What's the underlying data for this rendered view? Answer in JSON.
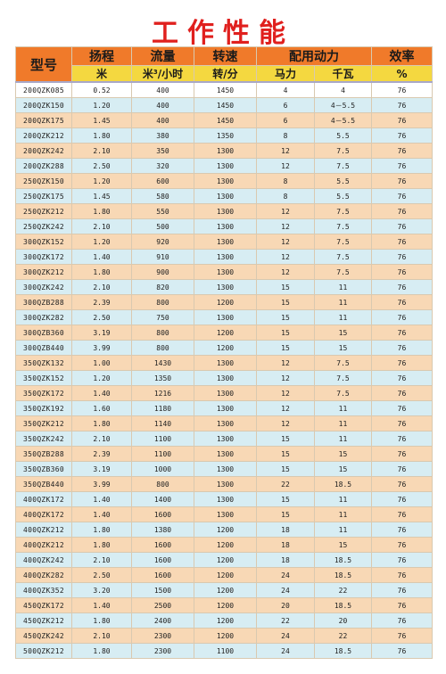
{
  "title": "工作性能",
  "headers": {
    "model": "型号",
    "head": "扬程",
    "flow": "流量",
    "speed": "转速",
    "power": "配用动力",
    "efficiency": "效率",
    "head_unit": "米",
    "flow_unit_base": "米",
    "flow_unit_sup": "3",
    "flow_unit_rest": "/小时",
    "speed_unit": "转/分",
    "hp_unit": "马力",
    "kw_unit": "千瓦",
    "efficiency_unit": "%"
  },
  "rows": [
    [
      "200QZK085",
      "0.52",
      "400",
      "1450",
      "4",
      "4",
      "76"
    ],
    [
      "200QZK150",
      "1.20",
      "400",
      "1450",
      "6",
      "4－5.5",
      "76"
    ],
    [
      "200QZK175",
      "1.45",
      "400",
      "1450",
      "6",
      "4－5.5",
      "76"
    ],
    [
      "200QZK212",
      "1.80",
      "380",
      "1350",
      "8",
      "5.5",
      "76"
    ],
    [
      "200QZK242",
      "2.10",
      "350",
      "1300",
      "12",
      "7.5",
      "76"
    ],
    [
      "200QZK288",
      "2.50",
      "320",
      "1300",
      "12",
      "7.5",
      "76"
    ],
    [
      "250QZK150",
      "1.20",
      "600",
      "1300",
      "8",
      "5.5",
      "76"
    ],
    [
      "250QZK175",
      "1.45",
      "580",
      "1300",
      "8",
      "5.5",
      "76"
    ],
    [
      "250QZK212",
      "1.80",
      "550",
      "1300",
      "12",
      "7.5",
      "76"
    ],
    [
      "250QZK242",
      "2.10",
      "500",
      "1300",
      "12",
      "7.5",
      "76"
    ],
    [
      "300QZK152",
      "1.20",
      "920",
      "1300",
      "12",
      "7.5",
      "76"
    ],
    [
      "300QZK172",
      "1.40",
      "910",
      "1300",
      "12",
      "7.5",
      "76"
    ],
    [
      "300QZK212",
      "1.80",
      "900",
      "1300",
      "12",
      "7.5",
      "76"
    ],
    [
      "300QZK242",
      "2.10",
      "820",
      "1300",
      "15",
      "11",
      "76"
    ],
    [
      "300QZB288",
      "2.39",
      "800",
      "1200",
      "15",
      "11",
      "76"
    ],
    [
      "300QZK282",
      "2.50",
      "750",
      "1300",
      "15",
      "11",
      "76"
    ],
    [
      "300QZB360",
      "3.19",
      "800",
      "1200",
      "15",
      "15",
      "76"
    ],
    [
      "300QZB440",
      "3.99",
      "800",
      "1200",
      "15",
      "15",
      "76"
    ],
    [
      "350QZK132",
      "1.00",
      "1430",
      "1300",
      "12",
      "7.5",
      "76"
    ],
    [
      "350QZK152",
      "1.20",
      "1350",
      "1300",
      "12",
      "7.5",
      "76"
    ],
    [
      "350QZK172",
      "1.40",
      "1216",
      "1300",
      "12",
      "7.5",
      "76"
    ],
    [
      "350QZK192",
      "1.60",
      "1180",
      "1300",
      "12",
      "11",
      "76"
    ],
    [
      "350QZK212",
      "1.80",
      "1140",
      "1300",
      "12",
      "11",
      "76"
    ],
    [
      "350QZK242",
      "2.10",
      "1100",
      "1300",
      "15",
      "11",
      "76"
    ],
    [
      "350QZB288",
      "2.39",
      "1100",
      "1300",
      "15",
      "15",
      "76"
    ],
    [
      "350QZB360",
      "3.19",
      "1000",
      "1300",
      "15",
      "15",
      "76"
    ],
    [
      "350QZB440",
      "3.99",
      "800",
      "1300",
      "22",
      "18.5",
      "76"
    ],
    [
      "400QZK172",
      "1.40",
      "1400",
      "1300",
      "15",
      "11",
      "76"
    ],
    [
      "400QZK172",
      "1.40",
      "1600",
      "1300",
      "15",
      "11",
      "76"
    ],
    [
      "400QZK212",
      "1.80",
      "1380",
      "1200",
      "18",
      "11",
      "76"
    ],
    [
      "400QZK212",
      "1.80",
      "1600",
      "1200",
      "18",
      "15",
      "76"
    ],
    [
      "400QZK242",
      "2.10",
      "1600",
      "1200",
      "18",
      "18.5",
      "76"
    ],
    [
      "400QZK282",
      "2.50",
      "1600",
      "1200",
      "24",
      "18.5",
      "76"
    ],
    [
      "400QZK352",
      "3.20",
      "1500",
      "1200",
      "24",
      "22",
      "76"
    ],
    [
      "450QZK172",
      "1.40",
      "2500",
      "1200",
      "20",
      "18.5",
      "76"
    ],
    [
      "450QZK212",
      "1.80",
      "2400",
      "1200",
      "22",
      "20",
      "76"
    ],
    [
      "450QZK242",
      "2.10",
      "2300",
      "1200",
      "24",
      "22",
      "76"
    ],
    [
      "500QZK212",
      "1.80",
      "2300",
      "1100",
      "24",
      "18.5",
      "76"
    ]
  ]
}
